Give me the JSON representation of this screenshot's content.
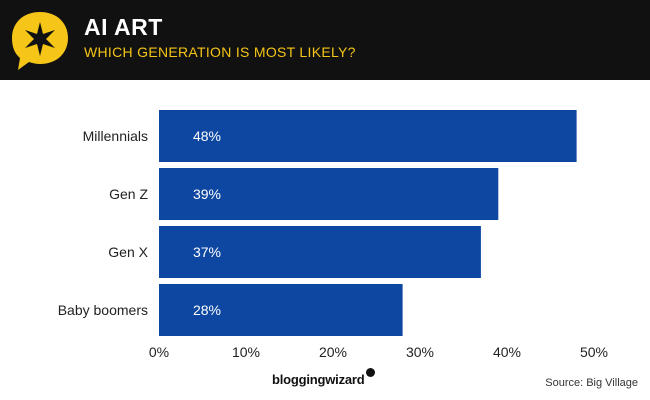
{
  "header": {
    "title": "AI ART",
    "subtitle": "WHICH GENERATION IS MOST LIKELY?",
    "logo_icon": "star-speech-bubble-icon"
  },
  "footer": {
    "brand": "bloggingwizard",
    "source": "Source: Big Village"
  },
  "colors": {
    "header_bg": "#111111",
    "accent": "#f5c518",
    "bar": "#0d47a1"
  },
  "chart_data": {
    "type": "bar",
    "orientation": "horizontal",
    "categories": [
      "Millennials",
      "Gen Z",
      "Gen X",
      "Baby boomers"
    ],
    "values": [
      48,
      39,
      37,
      28
    ],
    "value_labels": [
      "48%",
      "39%",
      "37%",
      "28%"
    ],
    "xlim": [
      0,
      50
    ],
    "xticks": [
      "0%",
      "10%",
      "20%",
      "30%",
      "40%",
      "50%"
    ],
    "grid": false,
    "legend": "none"
  }
}
